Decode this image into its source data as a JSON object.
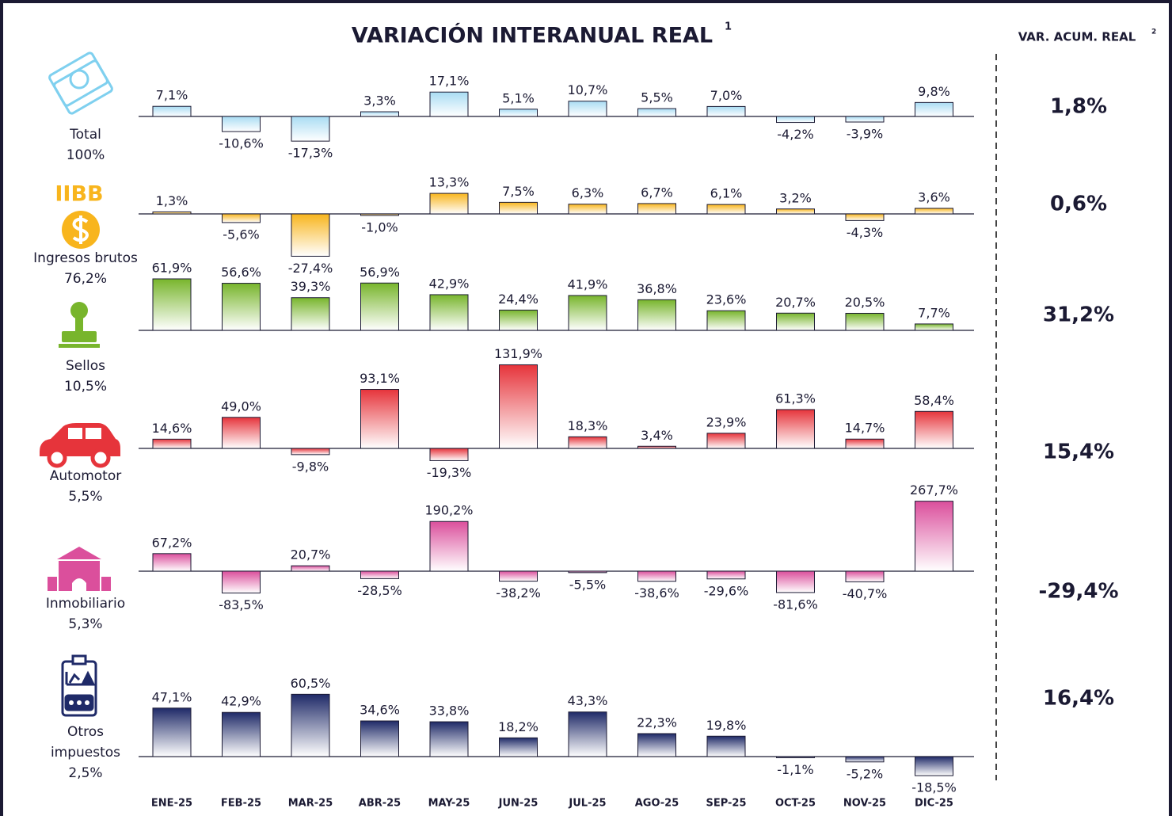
{
  "chart_data": {
    "type": "bar",
    "title": "VARIACIÓN INTERANUAL REAL",
    "title_note": "1",
    "side_title": "VAR. ACUM. REAL",
    "side_note": "2",
    "categories": [
      "ENE-25",
      "FEB-25",
      "MAR-25",
      "ABR-25",
      "MAY-25",
      "JUN-25",
      "JUL-25",
      "AGO-25",
      "SEP-25",
      "OCT-25",
      "NOV-25",
      "DIC-25"
    ],
    "series": [
      {
        "name": "Total",
        "share": "100%",
        "color": "#a9dcf3",
        "values": [
          7.1,
          -10.6,
          -17.3,
          3.3,
          17.1,
          5.1,
          10.7,
          5.5,
          7.0,
          -4.2,
          -3.9,
          9.8
        ],
        "value_labels": [
          "7,1%",
          "-10,6%",
          "-17,3%",
          "3,3%",
          "17,1%",
          "5,1%",
          "10,7%",
          "5,5%",
          "7,0%",
          "-4,2%",
          "-3,9%",
          "9,8%"
        ],
        "accumulated": 1.8,
        "accumulated_label": "1,8%"
      },
      {
        "name": "Ingresos brutos",
        "abbr": "IIBB",
        "share": "76,2%",
        "color": "#f8b51d",
        "values": [
          1.3,
          -5.6,
          -27.4,
          -1.0,
          13.3,
          7.5,
          6.3,
          6.7,
          6.1,
          3.2,
          -4.3,
          3.6
        ],
        "value_labels": [
          "1,3%",
          "-5,6%",
          "-27,4%",
          "-1,0%",
          "13,3%",
          "7,5%",
          "6,3%",
          "6,7%",
          "6,1%",
          "3,2%",
          "-4,3%",
          "3,6%"
        ],
        "accumulated": 0.6,
        "accumulated_label": "0,6%"
      },
      {
        "name": "Sellos",
        "share": "10,5%",
        "color": "#78b52c",
        "values": [
          61.9,
          56.6,
          39.3,
          56.9,
          42.9,
          24.4,
          41.9,
          36.8,
          23.6,
          20.7,
          20.5,
          7.7
        ],
        "value_labels": [
          "61,9%",
          "56,6%",
          "39,3%",
          "56,9%",
          "42,9%",
          "24,4%",
          "41,9%",
          "36,8%",
          "23,6%",
          "20,7%",
          "20,5%",
          "7,7%"
        ],
        "accumulated": 31.2,
        "accumulated_label": "31,2%"
      },
      {
        "name": "Automotor",
        "share": "5,5%",
        "color": "#e6343b",
        "values": [
          14.6,
          49.0,
          -9.8,
          93.1,
          -19.3,
          131.9,
          18.3,
          3.4,
          23.9,
          61.3,
          14.7,
          58.4
        ],
        "value_labels": [
          "14,6%",
          "49,0%",
          "-9,8%",
          "93,1%",
          "-19,3%",
          "131,9%",
          "18,3%",
          "3,4%",
          "23,9%",
          "61,3%",
          "14,7%",
          "58,4%"
        ],
        "accumulated": 15.4,
        "accumulated_label": "15,4%"
      },
      {
        "name": "Inmobiliario",
        "share": "5,3%",
        "color": "#db4f9c",
        "values": [
          67.2,
          -83.5,
          20.7,
          -28.5,
          190.2,
          -38.2,
          -5.5,
          -38.6,
          -29.6,
          -81.6,
          -40.7,
          267.7
        ],
        "value_labels": [
          "67,2%",
          "-83,5%",
          "20,7%",
          "-28,5%",
          "190,2%",
          "-38,2%",
          "-5,5%",
          "-38,6%",
          "-29,6%",
          "-81,6%",
          "-40,7%",
          "267,7%"
        ],
        "accumulated": -29.4,
        "accumulated_label": "-29,4%"
      },
      {
        "name": "Otros impuestos",
        "share": "2,5%",
        "color": "#1f2a68",
        "values": [
          47.1,
          42.9,
          60.5,
          34.6,
          33.8,
          18.2,
          43.3,
          22.3,
          19.8,
          -1.1,
          -5.2,
          -18.5
        ],
        "value_labels": [
          "47,1%",
          "42,9%",
          "60,5%",
          "34,6%",
          "33,8%",
          "18,2%",
          "43,3%",
          "22,3%",
          "19,8%",
          "-1,1%",
          "-5,2%",
          "-18,5%"
        ],
        "accumulated": 16.4,
        "accumulated_label": "16,4%"
      }
    ]
  }
}
